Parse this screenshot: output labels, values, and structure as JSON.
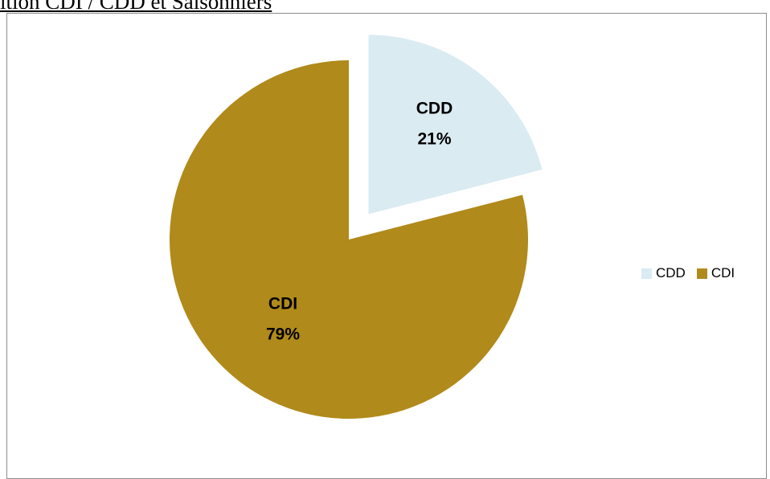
{
  "page": {
    "title": "ition CDI / CDD et Saisonniers"
  },
  "chart_data": {
    "type": "pie",
    "title": "",
    "categories": [
      "CDD",
      "CDI"
    ],
    "values": [
      21,
      79
    ],
    "labels": [
      "CDD\n21%",
      "CDI\n79%"
    ],
    "colors": [
      "#DAEBF2",
      "#B08A1A"
    ],
    "exploded": [
      "CDD"
    ],
    "legend": {
      "position": "right",
      "entries": [
        "CDD",
        "CDI"
      ]
    }
  }
}
